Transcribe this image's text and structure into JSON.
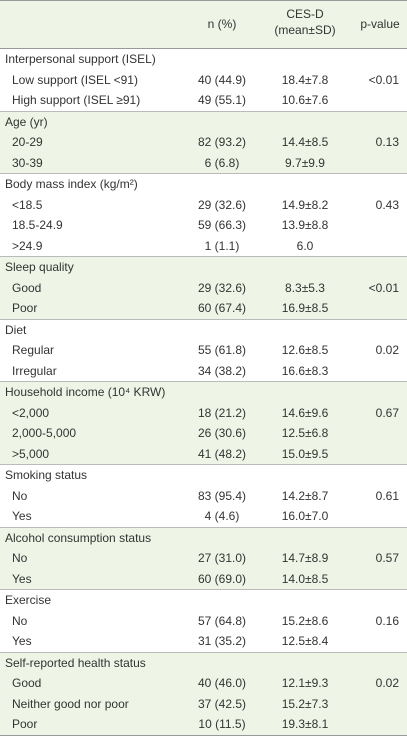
{
  "header": {
    "n": "n (%)",
    "cesd": [
      "CES-D",
      "(mean±SD)"
    ],
    "p": "p-value"
  },
  "groups": [
    {
      "label": "Interpersonal support (ISEL)",
      "p": "<0.01",
      "rows": [
        {
          "label": "Low support (ISEL <91)",
          "n": "40 (44.9)",
          "cesd": "18.4±7.8"
        },
        {
          "label": "High support (ISEL ≥91)",
          "n": "49 (55.1)",
          "cesd": "10.6±7.6"
        }
      ]
    },
    {
      "label": "Age (yr)",
      "p": "0.13",
      "rows": [
        {
          "label": "20-29",
          "n": "82 (93.2)",
          "cesd": "14.4±8.5"
        },
        {
          "label": "30-39",
          "n": "6 (6.8)",
          "cesd": "9.7±9.9"
        }
      ]
    },
    {
      "label": "Body mass index (kg/m²)",
      "p": "0.43",
      "rows": [
        {
          "label": "<18.5",
          "n": "29 (32.6)",
          "cesd": "14.9±8.2"
        },
        {
          "label": "18.5-24.9",
          "n": "59 (66.3)",
          "cesd": "13.9±8.8"
        },
        {
          "label": ">24.9",
          "n": "1 (1.1)",
          "cesd": "6.0"
        }
      ]
    },
    {
      "label": "Sleep quality",
      "p": "<0.01",
      "rows": [
        {
          "label": "Good",
          "n": "29 (32.6)",
          "cesd": "8.3±5.3"
        },
        {
          "label": "Poor",
          "n": "60 (67.4)",
          "cesd": "16.9±8.5"
        }
      ]
    },
    {
      "label": "Diet",
      "p": "0.02",
      "rows": [
        {
          "label": "Regular",
          "n": "55 (61.8)",
          "cesd": "12.6±8.5"
        },
        {
          "label": "Irregular",
          "n": "34 (38.2)",
          "cesd": "16.6±8.3"
        }
      ]
    },
    {
      "label": "Household income (10⁴ KRW)",
      "p": "0.67",
      "rows": [
        {
          "label": "<2,000",
          "n": "18 (21.2)",
          "cesd": "14.6±9.6"
        },
        {
          "label": "2,000-5,000",
          "n": "26 (30.6)",
          "cesd": "12.5±6.8"
        },
        {
          "label": ">5,000",
          "n": "41 (48.2)",
          "cesd": "15.0±9.5"
        }
      ]
    },
    {
      "label": "Smoking status",
      "p": "0.61",
      "rows": [
        {
          "label": "No",
          "n": "83 (95.4)",
          "cesd": "14.2±8.7"
        },
        {
          "label": "Yes",
          "n": "4 (4.6)",
          "cesd": "16.0±7.0"
        }
      ]
    },
    {
      "label": "Alcohol consumption status",
      "p": "0.57",
      "rows": [
        {
          "label": "No",
          "n": "27 (31.0)",
          "cesd": "14.7±8.9"
        },
        {
          "label": "Yes",
          "n": "60 (69.0)",
          "cesd": "14.0±8.5"
        }
      ]
    },
    {
      "label": "Exercise",
      "p": "0.16",
      "rows": [
        {
          "label": "No",
          "n": "57 (64.8)",
          "cesd": "15.2±8.6"
        },
        {
          "label": "Yes",
          "n": "31 (35.2)",
          "cesd": "12.5±8.4"
        }
      ]
    },
    {
      "label": "Self-reported health status",
      "p": "0.02",
      "rows": [
        {
          "label": "Good",
          "n": "40 (46.0)",
          "cesd": "12.1±9.3"
        },
        {
          "label": "Neither good nor poor",
          "n": "37 (42.5)",
          "cesd": "15.2±7.3"
        },
        {
          "label": "Poor",
          "n": "10 (11.5)",
          "cesd": "19.3±8.1"
        }
      ]
    }
  ]
}
